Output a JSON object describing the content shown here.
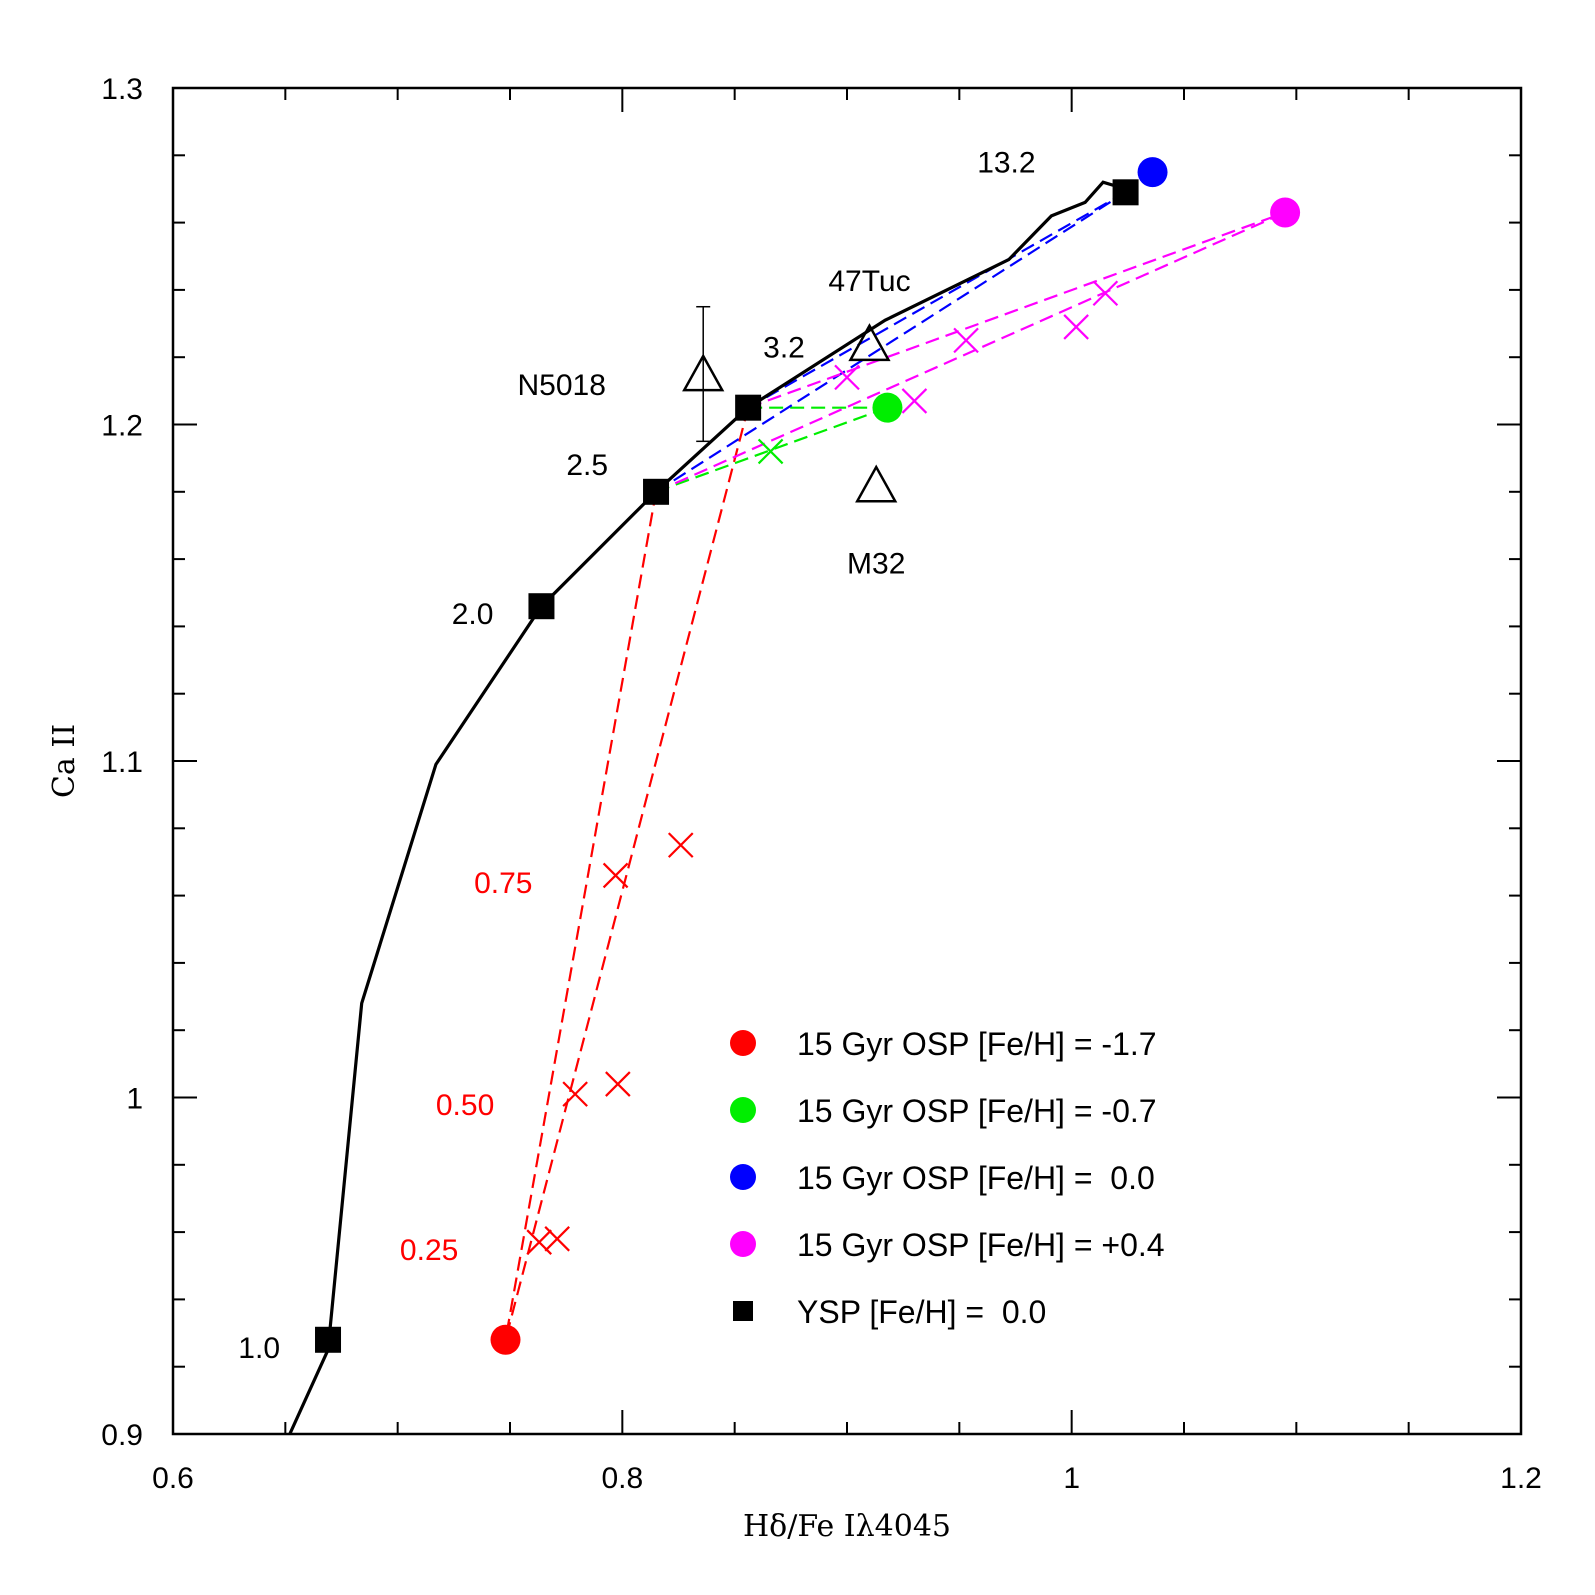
{
  "chart_data": {
    "type": "line",
    "xlabel": "Hδ/Fe Iλ4045",
    "ylabel": "Ca II",
    "xlim": [
      0.6,
      1.2
    ],
    "ylim": [
      0.9,
      1.3
    ],
    "x_ticks": [
      0.6,
      0.8,
      1.0,
      1.2
    ],
    "x_tick_labels": [
      "0.6",
      "0.8",
      "1",
      "1.2"
    ],
    "y_ticks": [
      0.9,
      1.0,
      1.1,
      1.2,
      1.3
    ],
    "y_tick_labels": [
      "0.9",
      "1",
      "1.1",
      "1.2",
      "1.3"
    ],
    "colors": {
      "ysp": "#000000",
      "feh_m17": "#ff0000",
      "feh_m07": "#00ee00",
      "feh_00": "#0000ff",
      "feh_p04": "#ff00ff"
    },
    "ysp_track": {
      "name": "YSP [Fe/H] = 0.0",
      "points": [
        [
          0.652,
          0.9
        ],
        [
          0.669,
          0.925
        ],
        [
          0.684,
          1.028
        ],
        [
          0.717,
          1.099
        ],
        [
          0.764,
          1.146
        ],
        [
          0.815,
          1.18
        ],
        [
          0.856,
          1.205
        ],
        [
          0.917,
          1.231
        ],
        [
          0.972,
          1.249
        ],
        [
          0.991,
          1.262
        ],
        [
          1.006,
          1.266
        ],
        [
          1.014,
          1.272
        ],
        [
          1.024,
          1.27
        ]
      ]
    },
    "ysp_markers": [
      {
        "x": 0.669,
        "y": 0.928,
        "label": "1.0"
      },
      {
        "x": 0.764,
        "y": 1.146,
        "label": "2.0"
      },
      {
        "x": 0.815,
        "y": 1.18,
        "label": "2.5"
      },
      {
        "x": 0.856,
        "y": 1.205,
        "label": "3.2"
      },
      {
        "x": 1.024,
        "y": 1.269,
        "label": "13.2"
      }
    ],
    "osp_points": [
      {
        "name": "15 Gyr OSP [Fe/H] = -1.7",
        "color_key": "feh_m17",
        "x": 0.748,
        "y": 0.928
      },
      {
        "name": "15 Gyr OSP [Fe/H] = -0.7",
        "color_key": "feh_m07",
        "x": 0.918,
        "y": 1.205
      },
      {
        "name": "15 Gyr OSP [Fe/H] =  0.0",
        "color_key": "feh_00",
        "x": 1.036,
        "y": 1.275
      },
      {
        "name": "15 Gyr OSP [Fe/H] = +0.4",
        "color_key": "feh_p04",
        "x": 1.095,
        "y": 1.263
      }
    ],
    "mixing_lines": [
      {
        "color_key": "feh_m17",
        "from": [
          0.815,
          1.18
        ],
        "to": [
          0.748,
          0.928
        ],
        "crosses": [
          [
            0.797,
            1.066
          ],
          [
            0.779,
            1.001
          ],
          [
            0.763,
            0.957
          ]
        ]
      },
      {
        "color_key": "feh_m17",
        "from": [
          0.856,
          1.205
        ],
        "to": [
          0.748,
          0.928
        ],
        "crosses": [
          [
            0.826,
            1.075
          ],
          [
            0.798,
            1.004
          ],
          [
            0.771,
            0.958
          ]
        ]
      },
      {
        "color_key": "feh_m07",
        "from": [
          0.815,
          1.18
        ],
        "to": [
          0.918,
          1.205
        ],
        "crosses": [
          [
            0.866,
            1.192
          ]
        ]
      },
      {
        "color_key": "feh_m07",
        "from": [
          0.856,
          1.205
        ],
        "to": [
          0.918,
          1.205
        ],
        "crosses": []
      },
      {
        "color_key": "feh_00",
        "from": [
          0.815,
          1.18
        ],
        "to": [
          1.024,
          1.269
        ],
        "crosses": []
      },
      {
        "color_key": "feh_00",
        "from": [
          0.856,
          1.205
        ],
        "to": [
          1.024,
          1.269
        ],
        "crosses": []
      },
      {
        "color_key": "feh_p04",
        "from": [
          0.815,
          1.18
        ],
        "to": [
          1.095,
          1.263
        ],
        "crosses": [
          [
            0.93,
            1.207
          ],
          [
            1.002,
            1.229
          ]
        ]
      },
      {
        "color_key": "feh_p04",
        "from": [
          0.856,
          1.205
        ],
        "to": [
          1.095,
          1.263
        ],
        "crosses": [
          [
            0.9,
            1.214
          ],
          [
            0.953,
            1.225
          ],
          [
            1.015,
            1.239
          ]
        ]
      }
    ],
    "annotations": [
      {
        "text": "0.75",
        "x": 0.76,
        "y": 1.064,
        "color_key": "feh_m17"
      },
      {
        "text": "0.50",
        "x": 0.743,
        "y": 0.998,
        "color_key": "feh_m17"
      },
      {
        "text": "0.25",
        "x": 0.727,
        "y": 0.955,
        "color_key": "feh_m17"
      }
    ],
    "objects": [
      {
        "name": "N5018",
        "x": 0.836,
        "y": 1.215,
        "err_low": 1.195,
        "err_high": 1.235,
        "label_x": 0.773,
        "label_y": 1.212
      },
      {
        "name": "47Tuc",
        "x": 0.91,
        "y": 1.224,
        "label_x": 0.91,
        "label_y": 1.243
      },
      {
        "name": "M32",
        "x": 0.913,
        "y": 1.182,
        "label_x": 0.913,
        "label_y": 1.159
      }
    ],
    "legend": {
      "placement": "lower-right",
      "entries": [
        {
          "label": "15 Gyr OSP [Fe/H] = -1.7",
          "marker": "circle",
          "color_key": "feh_m17"
        },
        {
          "label": "15 Gyr OSP [Fe/H] = -0.7",
          "marker": "circle",
          "color_key": "feh_m07"
        },
        {
          "label": "15 Gyr OSP [Fe/H] =  0.0",
          "marker": "circle",
          "color_key": "feh_00"
        },
        {
          "label": "15 Gyr OSP [Fe/H] = +0.4",
          "marker": "circle",
          "color_key": "feh_p04"
        },
        {
          "label": "YSP [Fe/H] =  0.0",
          "marker": "square",
          "color_key": "ysp"
        }
      ]
    }
  }
}
